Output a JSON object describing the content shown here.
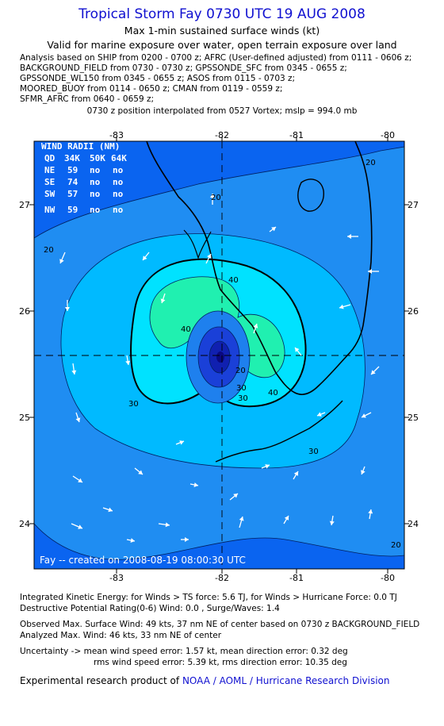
{
  "header": {
    "title": "Tropical Storm Fay 0730 UTC 19 AUG 2008",
    "subtitle1": "Max 1-min sustained surface winds (kt)",
    "subtitle2": "Valid for marine exposure over water, open terrain exposure over land"
  },
  "analysis_lines": [
    "Analysis based on  SHIP from 0200 - 0700 z;  AFRC (User-defined adjusted) from 0111 - 0606 z;",
    "BACKGROUND_FIELD from 0730 - 0730 z;  GPSSONDE_SFC from 0345 - 0655 z;",
    "GPSSONDE_WL150 from 0345 - 0655 z;  ASOS from 0115 - 0703 z;",
    "MOORED_BUOY from 0114 - 0650 z;  CMAN from 0119 - 0559 z;",
    "SFMR_AFRC from 0640 - 0659 z;"
  ],
  "position_line": "0730 z position interpolated from 0527 Vortex; mslp = 994.0 mb",
  "map": {
    "lon_ticks": [
      "-83",
      "-82",
      "-81",
      "-80"
    ],
    "lat_ticks": [
      "27",
      "26",
      "25",
      "24"
    ],
    "credit": "Fay -- created on 2008-08-19 08:00:30 UTC",
    "contour_labels": [
      "20",
      "20",
      "20",
      "30",
      "30",
      "30",
      "40",
      "40",
      "40",
      "20",
      "30",
      "20"
    ],
    "colors": {
      "c0": "#0a64f0",
      "c1": "#1f8df2",
      "c2": "#00baff",
      "c3": "#00e2ff",
      "c4": "#20f0b0",
      "c5": "#1e80ee",
      "c6": "#1a40d8",
      "c7": "#1020b0"
    }
  },
  "wind_radii": {
    "title": "WIND RADII (NM)",
    "header": [
      "QD",
      "34K",
      "50K",
      "64K"
    ],
    "rows": [
      {
        "q": "NE",
        "r34": "59",
        "r50": "no",
        "r64": "no"
      },
      {
        "q": "SE",
        "r34": "74",
        "r50": "no",
        "r64": "no"
      },
      {
        "q": "SW",
        "r34": "57",
        "r50": "no",
        "r64": "no"
      },
      {
        "q": "NW",
        "r34": "59",
        "r50": "no",
        "r64": "no"
      }
    ]
  },
  "footer": {
    "ike": "Integrated Kinetic Energy:  for Winds > TS force: 5.6 TJ,  for Winds > Hurricane Force: 0.0 TJ",
    "dpr": "Destructive Potential Rating(0-6)   Wind: 0.0 , Surge/Waves: 1.4",
    "obs": "Observed Max. Surface Wind: 49 kts, 37 nm NE of center based on 0730 z BACKGROUND_FIELD",
    "analyzed": "Analyzed Max. Wind: 46 kts, 33 nm NE of center",
    "unc1": "Uncertainty -> mean wind speed error: 1.57 kt,   mean direction error: 0.32 deg",
    "unc2": "rms wind speed error: 5.39 kt,   rms direction error: 10.35 deg",
    "credit_prefix": "Experimental research product of",
    "credit_org": "NOAA / AOML / Hurricane Research Division"
  }
}
